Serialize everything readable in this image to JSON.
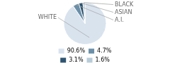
{
  "chart_data": {
    "type": "pie",
    "categories": [
      "WHITE",
      "A.I.",
      "ASIAN",
      "BLACK"
    ],
    "values": [
      90.6,
      4.7,
      3.1,
      1.6
    ],
    "value_labels": [
      "90.6%",
      "4.7%",
      "3.1%",
      "1.6%"
    ],
    "colors": [
      "#d9e3ee",
      "#6b8fa8",
      "#2e5470",
      "#b8ccd8"
    ],
    "legend": "bottom"
  }
}
